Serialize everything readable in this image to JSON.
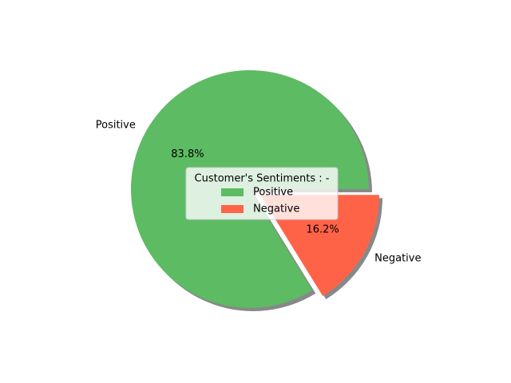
{
  "chart_data": {
    "type": "pie",
    "categories": [
      "Positive",
      "Negative"
    ],
    "values": [
      83.8,
      16.2
    ],
    "percent_labels": [
      "83.8%",
      "16.2%"
    ],
    "colors": [
      "#5dbb63",
      "#ff6347"
    ],
    "explode": [
      0,
      0.1
    ],
    "shadow": true,
    "start_angle": 0,
    "legend": {
      "title": "Customer's Sentiments : -",
      "placement": "center",
      "entries": [
        "Positive",
        "Negative"
      ]
    }
  }
}
